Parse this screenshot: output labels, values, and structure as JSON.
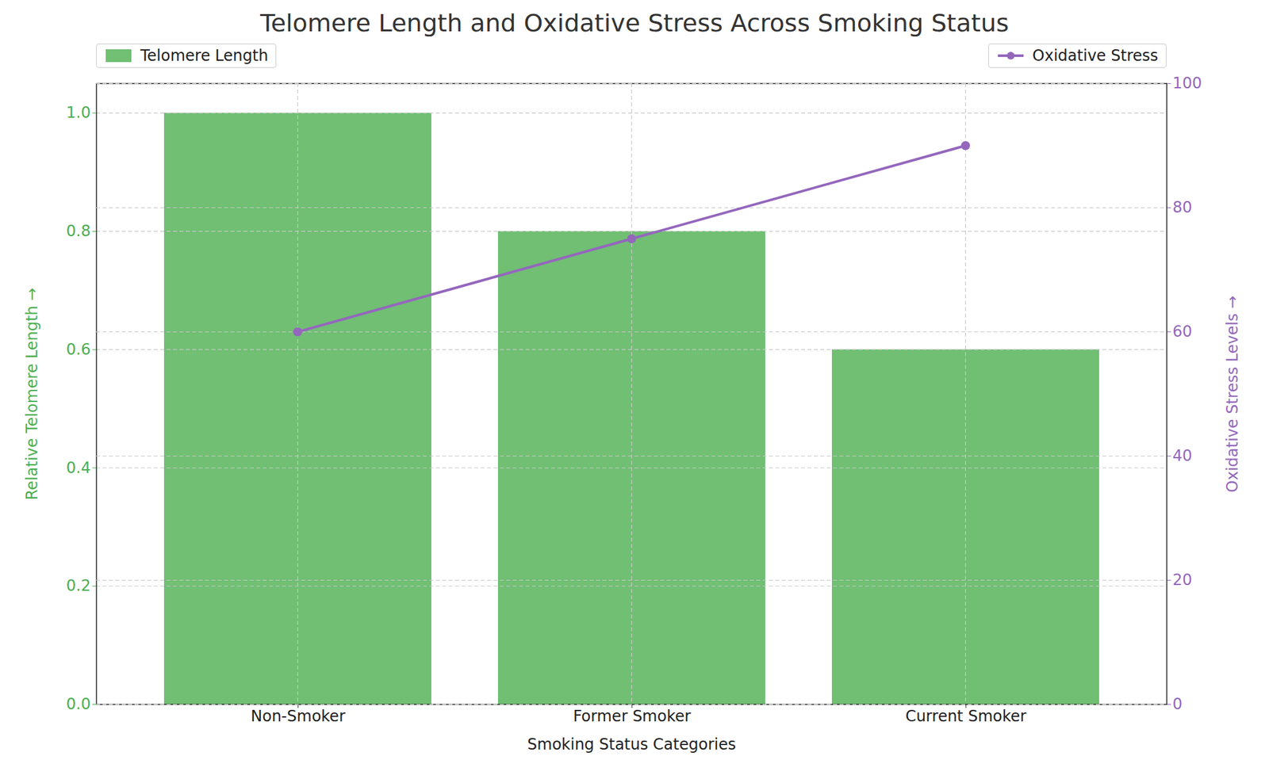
{
  "chart_data": {
    "type": "bar",
    "title": "Telomere Length and Oxidative Stress Across Smoking Status",
    "categories": [
      "Non-Smoker",
      "Former Smoker",
      "Current Smoker"
    ],
    "x_label": "Smoking Status Categories",
    "y_label": "Relative Telomere Length",
    "y2_label": "Oxidative Stress Levels",
    "series": [
      {
        "name": "Telomere Length",
        "type": "bar",
        "color": "#4caf50",
        "values": [
          1.0,
          0.8,
          0.6
        ]
      },
      {
        "name": "Oxidative Stress",
        "type": "line",
        "axis": "y2",
        "color": "#9467bd",
        "marker": "circle",
        "line_style": "solid",
        "values": [
          60,
          75,
          90
        ]
      }
    ],
    "ylim": [
      0,
      1.05
    ],
    "yticks": [
      {
        "value": 0,
        "label": "0.0"
      },
      0.2,
      0.4,
      0.6,
      0.8,
      {
        "value": 1,
        "label": "1.0"
      }
    ],
    "y2lim": [
      0,
      100
    ],
    "y2ticks": [
      0,
      20,
      40,
      60,
      80,
      100
    ],
    "grid": true,
    "legend": "top"
  }
}
